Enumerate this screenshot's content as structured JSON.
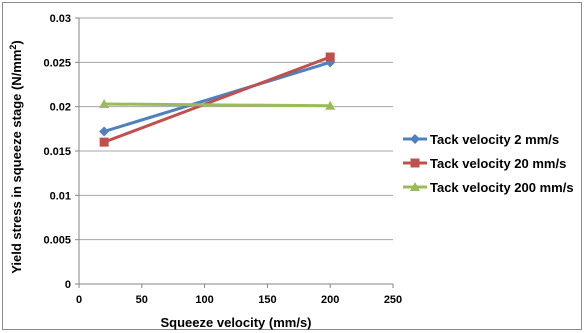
{
  "chart_data": {
    "type": "line",
    "xlabel": "Squeeze velocity (mm/s)",
    "ylabel": "Yield stress in squeeze stage (N/mm",
    "ylabel_superscript": "2",
    "ylabel_suffix": ")",
    "xlim": [
      0,
      250
    ],
    "ylim": [
      0,
      0.03
    ],
    "x_ticks": [
      "0",
      "50",
      "100",
      "150",
      "200",
      "250"
    ],
    "x_tick_values": [
      0,
      50,
      100,
      150,
      200,
      250
    ],
    "y_ticks": [
      "0",
      "0.005",
      "0.01",
      "0.015",
      "0.02",
      "0.025",
      "0.03"
    ],
    "y_tick_values": [
      0,
      0.005,
      0.01,
      0.015,
      0.02,
      0.025,
      0.03
    ],
    "grid": "horizontal",
    "legend_position": "right",
    "series": [
      {
        "name": "Tack velocity 2 mm/s",
        "color": "#4f81bd",
        "marker": "diamond",
        "x": [
          20,
          200
        ],
        "values": [
          0.0172,
          0.025
        ]
      },
      {
        "name": "Tack velocity 20 mm/s",
        "color": "#c0504d",
        "marker": "square",
        "x": [
          20,
          200
        ],
        "values": [
          0.016,
          0.0256
        ]
      },
      {
        "name": "Tack velocity 200 mm/s",
        "color": "#9bbb59",
        "marker": "triangle",
        "x": [
          20,
          200
        ],
        "values": [
          0.0203,
          0.0201
        ]
      }
    ]
  }
}
